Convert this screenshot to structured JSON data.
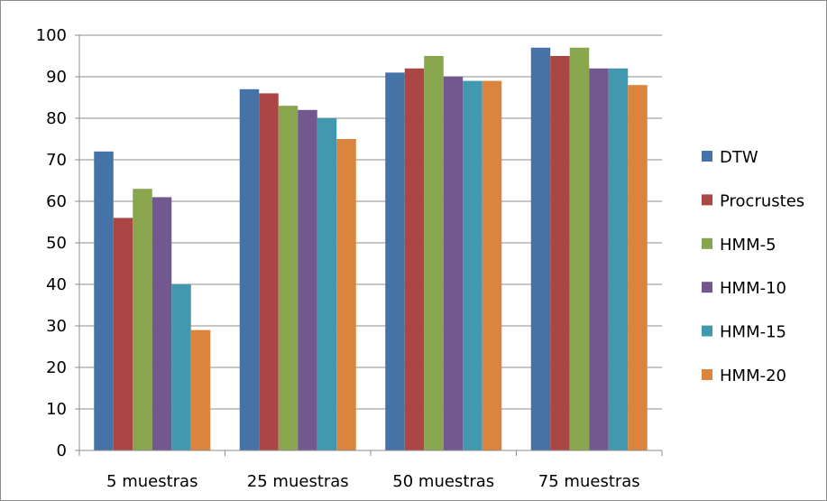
{
  "chart_data": {
    "type": "bar",
    "categories": [
      "5 muestras",
      "25 muestras",
      "50 muestras",
      "75 muestras"
    ],
    "series": [
      {
        "name": "DTW",
        "color": "#4572a7",
        "values": [
          72,
          87,
          91,
          97
        ]
      },
      {
        "name": "Procrustes",
        "color": "#aa4643",
        "values": [
          56,
          86,
          92,
          95
        ]
      },
      {
        "name": "HMM-5",
        "color": "#89a54e",
        "values": [
          63,
          83,
          95,
          97
        ]
      },
      {
        "name": "HMM-10",
        "color": "#71588f",
        "values": [
          61,
          82,
          90,
          92
        ]
      },
      {
        "name": "HMM-15",
        "color": "#4198af",
        "values": [
          40,
          80,
          89,
          92
        ]
      },
      {
        "name": "HMM-20",
        "color": "#db843d",
        "values": [
          29,
          75,
          89,
          88
        ]
      }
    ],
    "ylim": [
      0,
      100
    ],
    "yticks": [
      "0",
      "10",
      "20",
      "30",
      "40",
      "50",
      "60",
      "70",
      "80",
      "90",
      "100"
    ],
    "grid": true,
    "legend_position": "right"
  }
}
